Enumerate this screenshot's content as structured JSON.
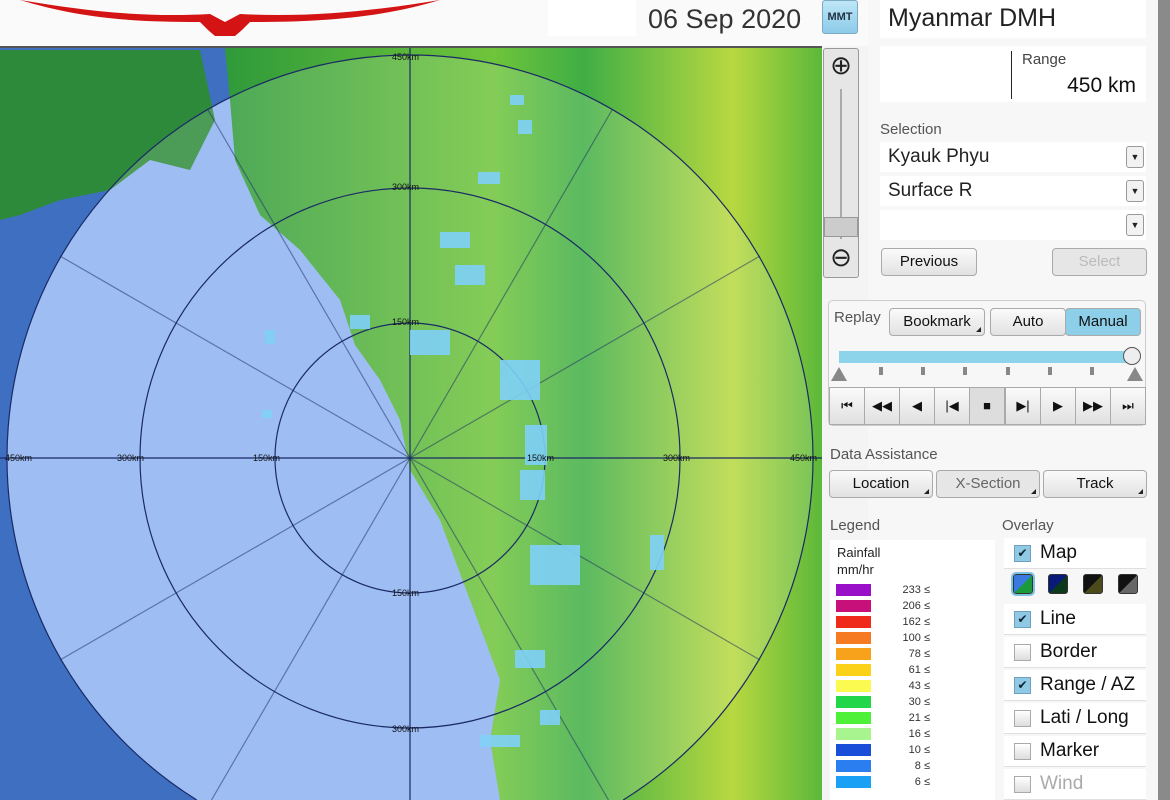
{
  "header": {
    "date": "06 Sep 2020",
    "timezone_button": "MMT"
  },
  "station": {
    "name": "Myanmar DMH",
    "range_label": "Range",
    "range_value": "450 km"
  },
  "selection": {
    "label": "Selection",
    "site": "Kyauk Phyu",
    "product": "Surface R",
    "third": "",
    "previous": "Previous",
    "select": "Select"
  },
  "replay": {
    "label": "Replay",
    "bookmark": "Bookmark",
    "auto": "Auto",
    "manual": "Manual",
    "mode": "Manual",
    "position": 1.0,
    "controls": [
      "first",
      "fast-back",
      "back",
      "step-back",
      "stop",
      "step-forward",
      "play",
      "fast-forward",
      "last"
    ]
  },
  "data_assistance": {
    "label": "Data Assistance",
    "location": "Location",
    "xsection": "X-Section",
    "track": "Track"
  },
  "legend": {
    "label": "Legend",
    "title": "Rainfall",
    "unit": "mm/hr",
    "items": [
      {
        "v": "233 ≤",
        "c": "#9a10c8"
      },
      {
        "v": "206 ≤",
        "c": "#c8107a"
      },
      {
        "v": "162 ≤",
        "c": "#f02a1a"
      },
      {
        "v": "100 ≤",
        "c": "#f57a22"
      },
      {
        "v": "78 ≤",
        "c": "#f7a21a"
      },
      {
        "v": "61 ≤",
        "c": "#fcd11a"
      },
      {
        "v": "43 ≤",
        "c": "#fafa50"
      },
      {
        "v": "30 ≤",
        "c": "#22d64a"
      },
      {
        "v": "21 ≤",
        "c": "#4ef038"
      },
      {
        "v": "16 ≤",
        "c": "#a8f590"
      },
      {
        "v": "10 ≤",
        "c": "#1a4ed8"
      },
      {
        "v": "8 ≤",
        "c": "#2a7ef0"
      },
      {
        "v": "6 ≤",
        "c": "#1aa0f5"
      }
    ]
  },
  "overlay": {
    "label": "Overlay",
    "items": [
      {
        "label": "Map",
        "checked": true
      },
      {
        "label": "Line",
        "checked": true
      },
      {
        "label": "Border",
        "checked": false
      },
      {
        "label": "Range / AZ",
        "checked": true
      },
      {
        "label": "Lati / Long",
        "checked": false
      },
      {
        "label": "Marker",
        "checked": false
      },
      {
        "label": "Wind",
        "checked": false,
        "disabled": true
      }
    ],
    "map_styles": [
      "blue-green",
      "navy-green",
      "black-olive",
      "black-gray"
    ],
    "selected_map_style": "blue-green"
  },
  "map": {
    "range_labels": {
      "r150": "150km",
      "r300": "300km",
      "r450": "450km",
      "w450": "450km",
      "w300": "300km",
      "w150": "150km",
      "e150": "150km",
      "e300": "300km",
      "e450": "450km",
      "s150": "150km",
      "s300": "300km",
      "n150": "150km",
      "n300": "300km"
    }
  }
}
